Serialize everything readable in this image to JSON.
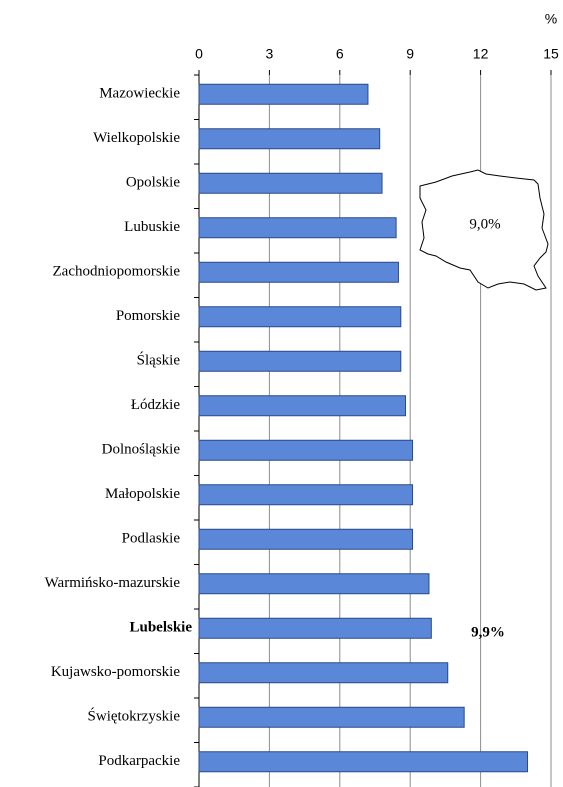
{
  "chart_data": {
    "type": "hbar",
    "xlabel": "%",
    "categories": [
      "Mazowieckie",
      "Wielkopolskie",
      "Opolskie",
      "Lubuskie",
      "Zachodniopomorskie",
      "Pomorskie",
      "Śląskie",
      "Łódzkie",
      "Dolnośląskie",
      "Małopolskie",
      "Podlaskie",
      "Warmińsko-mazurskie",
      "Lubelskie",
      "Kujawsko-pomorskie",
      "Świętokrzyskie",
      "Podkarpackie"
    ],
    "values": [
      7.2,
      7.7,
      7.8,
      8.4,
      8.5,
      8.6,
      8.6,
      8.8,
      9.1,
      9.1,
      9.1,
      9.8,
      9.9,
      10.6,
      11.3,
      14.0
    ],
    "color": "#5b87d8",
    "xlim": [
      0,
      15
    ],
    "xticks": [
      0,
      3,
      6,
      9,
      12,
      15
    ],
    "grid": true,
    "highlight_index": 12,
    "annotations": [
      {
        "text": "9,0%"
      },
      {
        "text": "9,9%"
      }
    ]
  }
}
